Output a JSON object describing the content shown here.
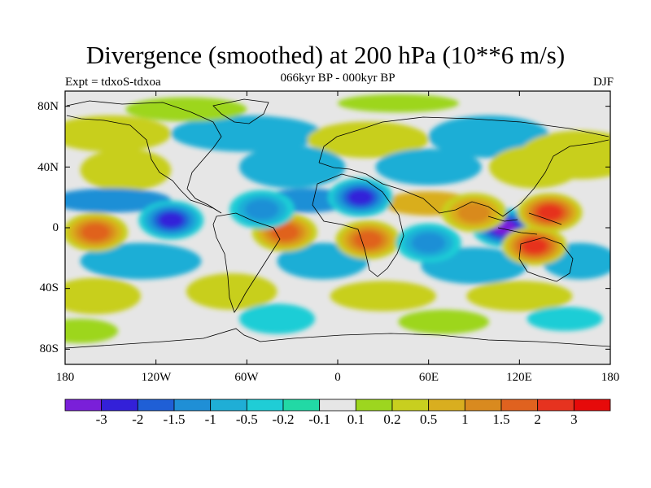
{
  "title": "Divergence (smoothed) at 200 hPa (10**6 m/s)",
  "left_label": "Expt = tdxoS-tdxoa",
  "center_label": "066kyr BP - 000kyr BP",
  "right_label": "DJF",
  "lat_ticks": [
    "80N",
    "40N",
    "0",
    "40S",
    "80S"
  ],
  "lat_values": [
    80,
    40,
    0,
    -40,
    -80
  ],
  "lon_ticks": [
    "180",
    "120W",
    "60W",
    "0",
    "60E",
    "120E",
    "180"
  ],
  "lon_values": [
    -180,
    -120,
    -60,
    0,
    60,
    120,
    180
  ],
  "colorbar": {
    "labels": [
      "-3",
      "-2",
      "-1.5",
      "-1",
      "-0.5",
      "-0.2",
      "-0.1",
      "0.1",
      "0.2",
      "0.5",
      "1",
      "1.5",
      "2",
      "3"
    ],
    "colors": [
      "#7a1fd9",
      "#3320d9",
      "#1f5fd6",
      "#1f8fd6",
      "#1faed6",
      "#1fcdd6",
      "#22d9a5",
      "#e6e6e6",
      "#9dd61f",
      "#c8cf1f",
      "#d9ae1f",
      "#d98a1f",
      "#e0621f",
      "#e6331f",
      "#e60a0a"
    ]
  },
  "chart_data": {
    "type": "heatmap",
    "title": "Divergence (smoothed) at 200 hPa (10**6 m/s)",
    "subtitle": "066kyr BP - 000kyr BP",
    "xlabel": "",
    "ylabel": "",
    "xlim": [
      -180,
      180
    ],
    "ylim": [
      -90,
      90
    ],
    "levels": [
      -3,
      -2,
      -1.5,
      -1,
      -0.5,
      -0.2,
      -0.1,
      0.1,
      0.2,
      0.5,
      1,
      1.5,
      2,
      3
    ],
    "features": [
      {
        "lon": 110,
        "lat": 0,
        "value": -3.2
      },
      {
        "lon": 15,
        "lat": 20,
        "value": -2
      },
      {
        "lon": -110,
        "lat": 5,
        "value": -2
      },
      {
        "lon": -35,
        "lat": -3,
        "value": 1.8
      },
      {
        "lon": 130,
        "lat": -12,
        "value": 2.8
      },
      {
        "lon": 140,
        "lat": 10,
        "value": 2.5
      },
      {
        "lon": 20,
        "lat": -8,
        "value": 1.5
      },
      {
        "lon": -160,
        "lat": -3,
        "value": 1.5
      },
      {
        "lon": -50,
        "lat": 12,
        "value": -1.3
      },
      {
        "lon": 60,
        "lat": -10,
        "value": -1
      },
      {
        "lon": 90,
        "lat": 10,
        "value": 1.2
      }
    ]
  }
}
